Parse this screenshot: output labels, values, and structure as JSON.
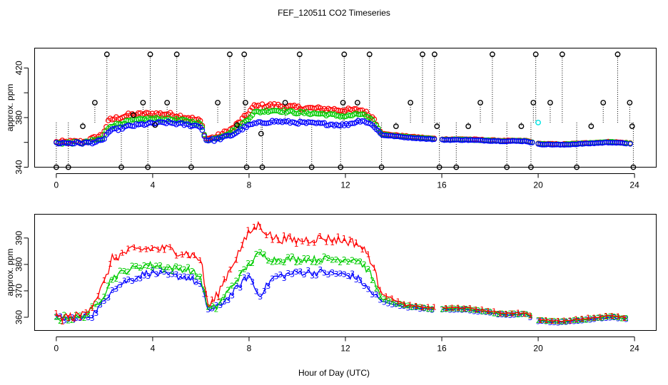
{
  "figure": {
    "title": "FEF_120511  CO2 Timeseries",
    "xlabel": "Hour of Day (UTC)"
  },
  "colors": {
    "s1": "#ff0000",
    "s2": "#00cc00",
    "s3": "#0000ff",
    "outlier": "#000000",
    "cyan": "#00e5e5"
  },
  "chart_data": [
    {
      "type": "scatter",
      "panel": "top",
      "ylabel": "approx. ppm",
      "xlim": [
        -0.9,
        24.9
      ],
      "ylim": [
        340,
        436
      ],
      "xticks": [
        0,
        4,
        8,
        12,
        16,
        20,
        24
      ],
      "yticks": [
        340,
        360,
        380,
        400,
        420
      ],
      "yticklabels": [
        "340",
        "",
        "380",
        "",
        "420"
      ],
      "markers": "circles",
      "series": [
        {
          "name": "1",
          "color": "#ff0000"
        },
        {
          "name": "2",
          "color": "#00cc00"
        },
        {
          "name": "3",
          "color": "#0000ff"
        }
      ],
      "profile": {
        "x": [
          0.0,
          1.2,
          1.9,
          2.2,
          3.0,
          3.8,
          4.6,
          5.5,
          6.0,
          6.2,
          6.6,
          7.3,
          7.8,
          8.2,
          9.0,
          10.0,
          11.0,
          12.0,
          12.7,
          13.2,
          13.5,
          14.5,
          16.0,
          17.0,
          18.5,
          19.5,
          20.0,
          21.0,
          22.0,
          23.0,
          23.8
        ],
        "y3": [
          359.5,
          359.5,
          361,
          369,
          373,
          375,
          376,
          374,
          373,
          362,
          362,
          366,
          372,
          375,
          377,
          376,
          375,
          374,
          378,
          373,
          366,
          364,
          362,
          362,
          361,
          361,
          358.5,
          358,
          359,
          360,
          359
        ],
        "y2": [
          359.5,
          359.8,
          363,
          373,
          377,
          379,
          379,
          377,
          375,
          362.5,
          363,
          369,
          376,
          384,
          386,
          384,
          383,
          381,
          383,
          376,
          366.5,
          364.5,
          362.3,
          362.3,
          361.2,
          361.2,
          358.8,
          358.3,
          359.3,
          360.3,
          359.3
        ],
        "y1": [
          360,
          360.5,
          366,
          378,
          382,
          383,
          383,
          380,
          377,
          363,
          364,
          371,
          380,
          389,
          390,
          388,
          387,
          386,
          386,
          379,
          367,
          365,
          362.6,
          362.6,
          361.4,
          361.4,
          359,
          358.5,
          359.5,
          360.5,
          359.5
        ]
      },
      "outliers": [
        {
          "x": 0.0,
          "y": 340
        },
        {
          "x": 0.5,
          "y": 340
        },
        {
          "x": 1.1,
          "y": 373
        },
        {
          "x": 1.6,
          "y": 392
        },
        {
          "x": 2.1,
          "y": 431
        },
        {
          "x": 2.7,
          "y": 340
        },
        {
          "x": 3.2,
          "y": 382
        },
        {
          "x": 3.6,
          "y": 392
        },
        {
          "x": 3.8,
          "y": 340
        },
        {
          "x": 3.9,
          "y": 431
        },
        {
          "x": 4.1,
          "y": 374
        },
        {
          "x": 4.6,
          "y": 392
        },
        {
          "x": 5.0,
          "y": 431
        },
        {
          "x": 5.6,
          "y": 340
        },
        {
          "x": 6.7,
          "y": 392
        },
        {
          "x": 7.2,
          "y": 431
        },
        {
          "x": 7.5,
          "y": 374
        },
        {
          "x": 7.8,
          "y": 431
        },
        {
          "x": 7.85,
          "y": 392
        },
        {
          "x": 7.9,
          "y": 340
        },
        {
          "x": 8.5,
          "y": 367
        },
        {
          "x": 8.55,
          "y": 340
        },
        {
          "x": 9.5,
          "y": 392
        },
        {
          "x": 10.1,
          "y": 431
        },
        {
          "x": 10.6,
          "y": 340
        },
        {
          "x": 11.8,
          "y": 340
        },
        {
          "x": 11.9,
          "y": 392
        },
        {
          "x": 11.95,
          "y": 431
        },
        {
          "x": 12.5,
          "y": 392
        },
        {
          "x": 13.0,
          "y": 431
        },
        {
          "x": 13.5,
          "y": 340
        },
        {
          "x": 14.1,
          "y": 373
        },
        {
          "x": 14.7,
          "y": 392
        },
        {
          "x": 15.2,
          "y": 431
        },
        {
          "x": 15.7,
          "y": 431
        },
        {
          "x": 15.8,
          "y": 373
        },
        {
          "x": 15.9,
          "y": 340
        },
        {
          "x": 16.6,
          "y": 340
        },
        {
          "x": 17.1,
          "y": 373
        },
        {
          "x": 17.6,
          "y": 392
        },
        {
          "x": 18.1,
          "y": 431
        },
        {
          "x": 18.7,
          "y": 340
        },
        {
          "x": 19.3,
          "y": 373
        },
        {
          "x": 19.7,
          "y": 340
        },
        {
          "x": 19.8,
          "y": 392
        },
        {
          "x": 19.9,
          "y": 431
        },
        {
          "x": 20.5,
          "y": 392
        },
        {
          "x": 21.0,
          "y": 431
        },
        {
          "x": 21.6,
          "y": 340
        },
        {
          "x": 22.2,
          "y": 373
        },
        {
          "x": 22.7,
          "y": 392
        },
        {
          "x": 23.3,
          "y": 431
        },
        {
          "x": 23.8,
          "y": 392
        },
        {
          "x": 23.9,
          "y": 373
        },
        {
          "x": 23.95,
          "y": 340
        }
      ],
      "highlight": {
        "x": 20.0,
        "y": 376,
        "color": "#00e5e5"
      }
    },
    {
      "type": "scatter",
      "panel": "bottom",
      "ylabel": "approx. ppm",
      "xlim": [
        -0.9,
        24.9
      ],
      "ylim": [
        355,
        399
      ],
      "xticks": [
        0,
        4,
        8,
        12,
        16,
        20,
        24
      ],
      "yticks": [
        360,
        370,
        380,
        390
      ],
      "markers": "digits",
      "series": [
        {
          "name": "1",
          "label": "1",
          "color": "#ff0000",
          "style": "numbered line"
        },
        {
          "name": "2",
          "label": "2",
          "color": "#00cc00",
          "style": "numbered line"
        },
        {
          "name": "3",
          "label": "3",
          "color": "#0000ff",
          "style": "numbered line"
        }
      ],
      "profile": {
        "x": [
          0.0,
          1.0,
          1.5,
          2.0,
          2.3,
          3.0,
          3.8,
          4.5,
          5.5,
          6.0,
          6.3,
          6.6,
          7.3,
          8.0,
          8.4,
          9.0,
          10.0,
          11.0,
          12.0,
          12.5,
          13.0,
          13.5,
          14.5,
          15.5,
          16.0,
          17.0,
          18.5,
          19.5,
          20.0,
          21.0,
          22.0,
          23.0,
          23.8
        ],
        "y3": [
          359.5,
          359.5,
          361,
          366,
          371,
          374,
          377,
          376,
          375,
          372,
          363,
          363,
          369,
          376,
          368,
          375,
          377,
          377,
          376,
          375,
          370,
          366,
          364,
          363,
          363,
          363,
          361,
          361,
          358.5,
          358,
          359,
          360,
          359
        ],
        "y2": [
          359.7,
          359.9,
          363,
          369,
          375,
          378,
          380,
          379,
          378,
          375,
          363.3,
          363.5,
          372,
          380,
          384,
          382,
          382,
          382,
          382,
          382,
          377,
          367,
          364.3,
          363.3,
          363.3,
          363.3,
          361.3,
          361.3,
          358.8,
          358.3,
          359.3,
          360.3,
          359.3
        ],
        "y1": [
          359.9,
          360.5,
          365,
          373,
          382,
          385,
          386,
          386,
          384,
          382,
          364,
          367,
          380,
          392,
          395,
          390,
          389,
          390,
          389,
          388,
          383,
          369,
          364.6,
          363.6,
          363.6,
          363.6,
          361.6,
          361.6,
          359.1,
          358.6,
          359.6,
          360.6,
          359.6
        ]
      }
    }
  ]
}
